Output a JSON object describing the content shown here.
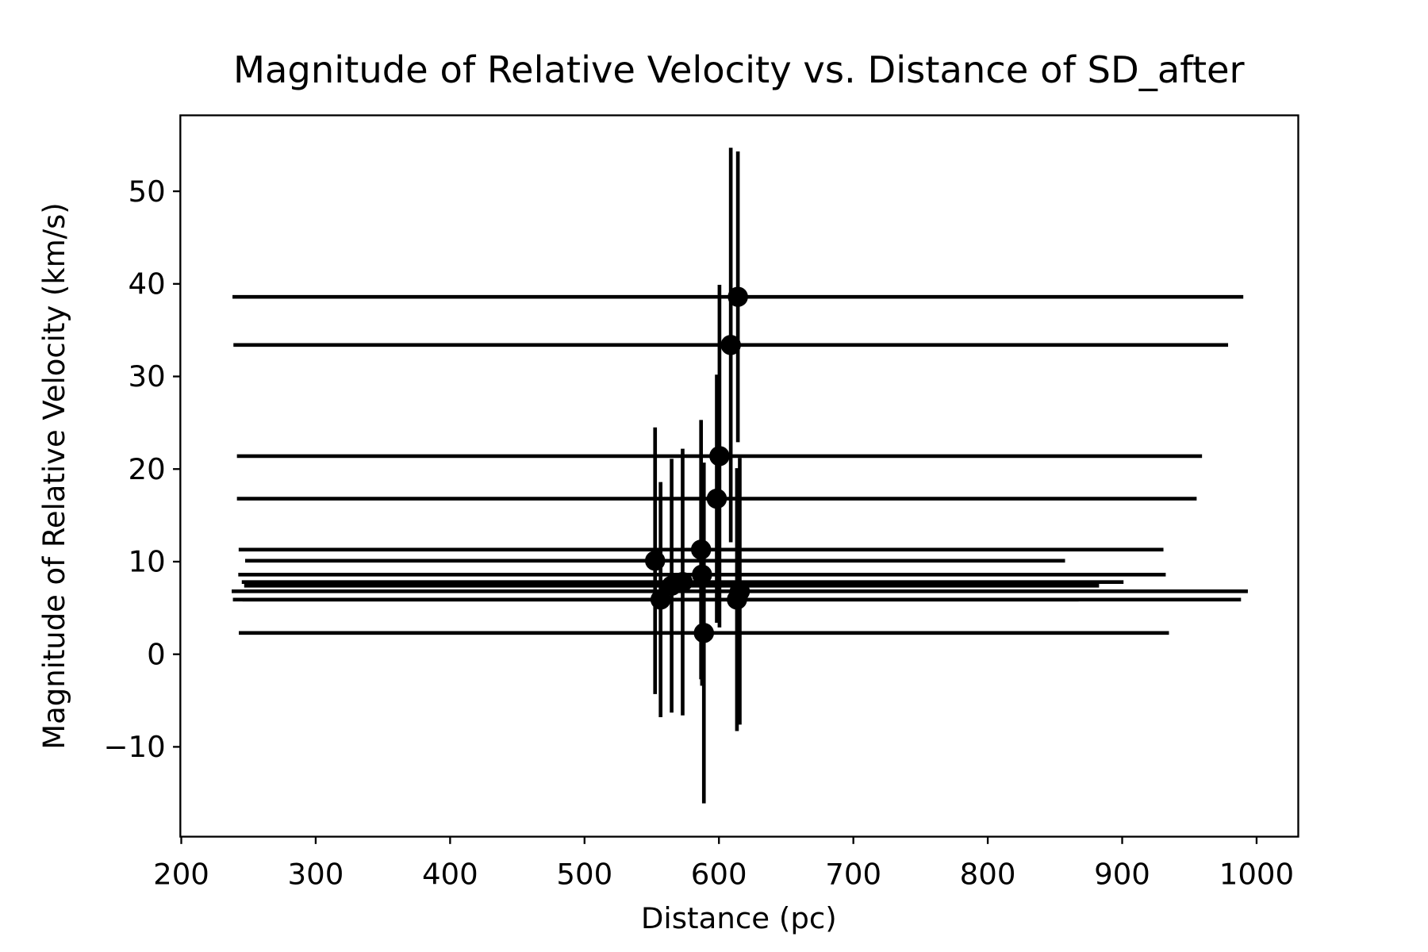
{
  "chart_data": {
    "type": "errorbar",
    "title": "Magnitude of Relative Velocity vs. Distance of SD_after",
    "x_label": "Distance (pc)",
    "y_label": "Magnitude of Relative Velocity (km/s)",
    "color": "#000000",
    "x": [
      614.1,
      608.8,
      600.4,
      598.4,
      552.5,
      586.7,
      587.4,
      556.6,
      564.8,
      573.0,
      613.4,
      615.5,
      588.8
    ],
    "values": [
      38.6,
      33.4,
      21.4,
      16.8,
      10.1,
      11.3,
      8.6,
      5.9,
      7.4,
      7.8,
      5.9,
      6.8,
      2.3
    ],
    "xerr": [
      376,
      370,
      359,
      357,
      305,
      344,
      345,
      311,
      318,
      328,
      375,
      378,
      346
    ],
    "yerr": [
      15.7,
      21.3,
      18.5,
      13.4,
      14.4,
      14.0,
      12.0,
      12.7,
      13.7,
      14.4,
      14.2,
      14.4,
      18.4
    ],
    "xlim": [
      199.3,
      1031
    ],
    "ylim": [
      -19.7,
      58.2
    ],
    "xticks": [
      200,
      300,
      400,
      500,
      600,
      700,
      800,
      900,
      1000
    ],
    "yticks": [
      {
        "value": -10,
        "label": "−10"
      },
      0,
      10,
      20,
      30,
      40,
      50
    ]
  }
}
